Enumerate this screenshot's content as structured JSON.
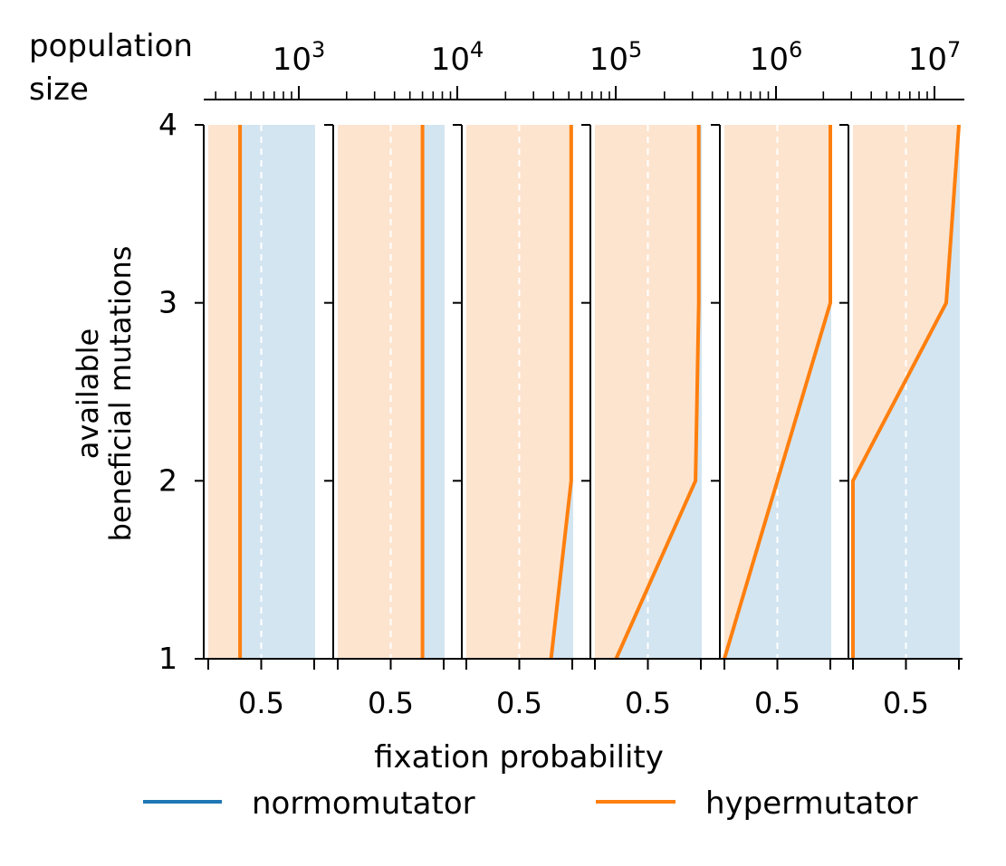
{
  "colors": {
    "normo": "#1f77b4",
    "hyper": "#ff7f0e",
    "normo_fill": "#d3e5f1",
    "hyper_fill": "#fde4cf"
  },
  "chart_data": {
    "type": "area",
    "ylabel_line1": "available",
    "ylabel_line2": "beneficial mutations",
    "xlabel": "fixation probability",
    "top_axis_label_line1": "population",
    "top_axis_label_line2": "size",
    "top_axis_scale": "log",
    "top_axis_ticks": [
      {
        "base": "10",
        "exp": "3"
      },
      {
        "base": "10",
        "exp": "4"
      },
      {
        "base": "10",
        "exp": "5"
      },
      {
        "base": "10",
        "exp": "6"
      },
      {
        "base": "10",
        "exp": "7"
      }
    ],
    "y_ticks": [
      "1",
      "2",
      "3",
      "4"
    ],
    "ylim": [
      1,
      4
    ],
    "x_tick_label": "0.5",
    "xlim": [
      0,
      1
    ],
    "legend": [
      {
        "name": "normomutator",
        "color": "#1f77b4"
      },
      {
        "name": "hypermutator",
        "color": "#ff7f0e"
      }
    ],
    "legend_placement": "bottom",
    "y_values": [
      1,
      2,
      3,
      4
    ],
    "panels": [
      {
        "hypermutator": [
          0.3,
          0.3,
          0.3,
          0.3
        ]
      },
      {
        "hypermutator": [
          0.8,
          0.8,
          0.8,
          0.8
        ]
      },
      {
        "hypermutator": [
          0.8,
          0.99,
          0.99,
          0.99
        ]
      },
      {
        "hypermutator": [
          0.2,
          0.95,
          0.98,
          0.98
        ]
      },
      {
        "hypermutator": [
          0.0,
          0.5,
          1.0,
          1.0
        ]
      },
      {
        "hypermutator": [
          0.0,
          0.0,
          0.88,
          1.0
        ]
      }
    ]
  }
}
